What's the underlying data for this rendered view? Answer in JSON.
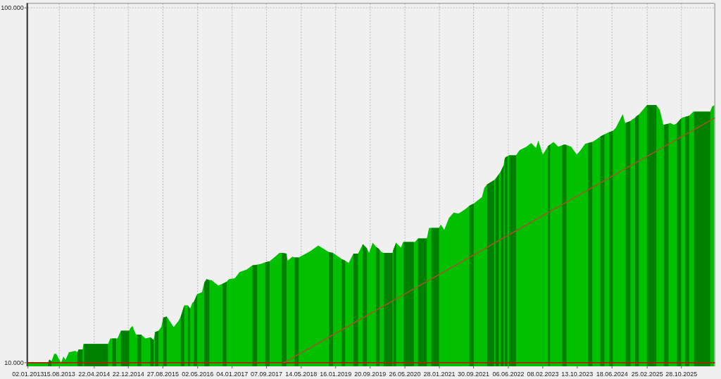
{
  "chart_data": {
    "type": "area",
    "x": [
      "2013-01-02",
      "2013-05-15",
      "2013-05-26",
      "2013-06-04",
      "2013-06-20",
      "2013-07-09",
      "2013-07-24",
      "2013-08-09",
      "2013-08-27",
      "2013-09-13",
      "2013-09-28",
      "2013-10-23",
      "2013-12-08",
      "2013-12-23",
      "2013-12-31",
      "2014-01-29",
      "2014-02-03",
      "2014-02-08",
      "2014-07-30",
      "2014-08-15",
      "2014-08-29",
      "2014-09-26",
      "2014-10-05",
      "2014-10-30",
      "2014-12-28",
      "2015-01-05",
      "2015-01-22",
      "2015-01-30",
      "2015-02-16",
      "2015-02-25",
      "2015-03-25",
      "2015-04-24",
      "2015-05-28",
      "2015-06-22",
      "2015-06-27",
      "2015-07-01",
      "2015-07-26",
      "2015-08-15",
      "2015-08-29",
      "2015-09-23",
      "2015-11-12",
      "2015-12-16",
      "2016-01-02",
      "2016-01-27",
      "2016-02-04",
      "2016-02-22",
      "2016-03-09",
      "2016-03-26",
      "2016-04-03",
      "2016-04-29",
      "2016-06-02",
      "2016-06-18",
      "2016-07-05",
      "2016-07-25",
      "2016-08-08",
      "2016-09-27",
      "2016-10-28",
      "2016-11-25",
      "2016-12-12",
      "2017-01-23",
      "2017-02-26",
      "2017-04-17",
      "2017-05-29",
      "2017-07-02",
      "2017-07-30",
      "2017-08-30",
      "2017-09-29",
      "2017-10-19",
      "2017-12-09",
      "2017-12-26",
      "2018-01-29",
      "2018-02-06",
      "2018-03-12",
      "2018-03-28",
      "2018-04-26",
      "2018-07-16",
      "2018-09-13",
      "2018-10-08",
      "2018-11-19",
      "2018-11-28",
      "2018-12-28",
      "2019-02-20",
      "2019-02-28",
      "2019-03-25",
      "2019-04-19",
      "2019-05-23",
      "2019-06-25",
      "2019-07-04",
      "2019-07-29",
      "2019-08-28",
      "2019-09-12",
      "2019-10-08",
      "2019-11-02",
      "2019-11-17",
      "2019-11-27",
      "2019-12-10",
      "2019-12-26",
      "2020-02-27",
      "2020-03-01",
      "2020-03-04",
      "2020-03-24",
      "2020-04-27",
      "2020-05-14",
      "2020-05-17",
      "2020-07-29",
      "2020-08-06",
      "2020-08-28",
      "2020-10-30",
      "2020-11-15",
      "2020-12-02",
      "2021-01-26",
      "2021-02-07",
      "2021-03-04",
      "2021-04-07",
      "2021-05-11",
      "2021-06-14",
      "2021-08-03",
      "2021-08-31",
      "2021-10-01",
      "2021-11-29",
      "2021-12-16",
      "2022-01-05",
      "2022-02-24",
      "2022-03-01",
      "2022-03-06",
      "2022-03-10",
      "2022-03-30",
      "2022-04-06",
      "2022-04-13",
      "2022-05-03",
      "2022-05-07",
      "2022-05-11",
      "2022-05-16",
      "2022-05-30",
      "2022-06-05",
      "2022-06-12",
      "2022-07-31",
      "2022-08-25",
      "2022-10-14",
      "2022-11-17",
      "2022-12-21",
      "2023-01-07",
      "2023-02-08",
      "2023-03-15",
      "2023-03-18",
      "2023-04-01",
      "2023-04-26",
      "2023-05-30",
      "2023-06-27",
      "2023-07-11",
      "2023-07-28",
      "2023-08-30",
      "2023-10-10",
      "2023-11-05",
      "2023-12-09",
      "2023-12-30",
      "2024-01-29",
      "2024-02-28",
      "2024-03-27",
      "2024-04-05",
      "2024-04-25",
      "2024-05-25",
      "2024-05-29",
      "2024-06-24",
      "2024-07-15",
      "2024-09-03",
      "2024-09-20",
      "2024-09-24",
      "2024-10-28",
      "2024-11-10",
      "2024-11-30",
      "2024-12-13",
      "2024-12-27",
      "2025-01-29",
      "2025-02-23",
      "2025-05-02",
      "2025-05-27",
      "2025-06-21",
      "2025-06-24",
      "2025-07-28",
      "2025-08-10",
      "2025-09-04",
      "2025-09-26",
      "2025-10-26",
      "2025-11-07",
      "2025-11-24",
      "2025-12-19",
      "2025-12-23",
      "2026-01-22",
      "2026-01-27",
      "2026-05-19",
      "2026-05-23",
      "2026-06-05",
      "2026-06-22"
    ],
    "series": [
      {
        "color": "#00c000",
        "values": [
          10000,
          10000,
          10000,
          10200,
          10100,
          10600,
          10600,
          10300,
          10000,
          10400,
          10200,
          10700,
          10800,
          10700,
          10900,
          10900,
          11300,
          11300,
          11300,
          11700,
          11700,
          11700,
          11700,
          12300,
          12300,
          12500,
          12700,
          12400,
          12000,
          12000,
          12000,
          11700,
          11800,
          11600,
          11900,
          12200,
          12300,
          12600,
          13400,
          13500,
          12600,
          13100,
          13500,
          14500,
          14500,
          14500,
          14200,
          14800,
          14800,
          15600,
          15800,
          16800,
          17200,
          17100,
          17100,
          16500,
          16700,
          16900,
          17200,
          17300,
          18000,
          18300,
          18800,
          18900,
          19000,
          19200,
          19300,
          19600,
          20400,
          20400,
          20300,
          19400,
          19900,
          19800,
          19800,
          20600,
          21400,
          21100,
          20600,
          20500,
          20400,
          19700,
          19600,
          19400,
          19100,
          20300,
          20300,
          20600,
          21600,
          21000,
          20400,
          21800,
          21200,
          21000,
          20800,
          20500,
          20400,
          20400,
          20600,
          20800,
          21800,
          21100,
          21900,
          21900,
          21900,
          21900,
          22400,
          22400,
          24000,
          24000,
          24000,
          24500,
          23700,
          25600,
          26500,
          26300,
          27100,
          27700,
          28100,
          29300,
          31100,
          31800,
          32700,
          32800,
          33000,
          33100,
          34000,
          34300,
          34600,
          36000,
          36800,
          37500,
          37900,
          38200,
          38300,
          38400,
          38400,
          39700,
          40600,
          41600,
          40300,
          42300,
          38600,
          40600,
          40800,
          41200,
          41900,
          40600,
          41000,
          41200,
          41100,
          40600,
          38600,
          39700,
          41400,
          41600,
          41900,
          42600,
          43400,
          43600,
          44000,
          44600,
          44600,
          45000,
          45900,
          50200,
          47400,
          47400,
          48000,
          48500,
          49000,
          49600,
          50000,
          51800,
          53200,
          53200,
          51500,
          46800,
          46800,
          47200,
          47400,
          46800,
          47300,
          48800,
          49100,
          49300,
          49600,
          49700,
          51000,
          51000,
          51000,
          51000,
          52700,
          53200
        ]
      },
      {
        "color": "#008000",
        "values": [
          null,
          null,
          10000,
          10200,
          10100,
          null,
          null,
          null,
          null,
          null,
          null,
          null,
          null,
          10700,
          10900,
          10900,
          null,
          11300,
          11300,
          null,
          11700,
          11700,
          null,
          12300,
          12300,
          null,
          null,
          null,
          null,
          12000,
          12000,
          null,
          11800,
          11600,
          null,
          12200,
          12300,
          null,
          13400,
          13500,
          null,
          null,
          13500,
          14500,
          null,
          14500,
          14200,
          null,
          14800,
          15600,
          null,
          16800,
          17200,
          17100,
          null,
          null,
          16700,
          16900,
          null,
          null,
          null,
          null,
          18800,
          18900,
          null,
          19200,
          19300,
          null,
          null,
          20400,
          20300,
          null,
          null,
          19800,
          19800,
          null,
          null,
          null,
          null,
          20500,
          20400,
          null,
          19600,
          19400,
          null,
          20300,
          20300,
          null,
          21600,
          21000,
          null,
          null,
          21200,
          21000,
          20800,
          null,
          20400,
          20400,
          null,
          20800,
          21800,
          null,
          null,
          21900,
          21900,
          null,
          22400,
          22400,
          null,
          24000,
          24000,
          null,
          null,
          null,
          null,
          null,
          null,
          27700,
          28100,
          null,
          null,
          31800,
          32700,
          null,
          33000,
          33100,
          34000,
          null,
          34600,
          36000,
          null,
          37500,
          37900,
          38200,
          null,
          38400,
          38400,
          null,
          null,
          null,
          null,
          null,
          null,
          null,
          40800,
          41200,
          null,
          null,
          41000,
          41200,
          41100,
          null,
          null,
          null,
          null,
          41600,
          41900,
          null,
          43400,
          43600,
          44000,
          null,
          44600,
          45000,
          null,
          null,
          null,
          47400,
          48000,
          null,
          49000,
          49600,
          50000,
          null,
          53200,
          53200,
          null,
          null,
          46800,
          47200,
          null,
          null,
          47300,
          48800,
          null,
          49300,
          49600,
          49700,
          null,
          51000,
          51000,
          51000,
          null,
          null
        ]
      },
      {
        "type": "line",
        "color": "#b02000",
        "x": [
          "2013-01-02",
          "2026-06-22"
        ],
        "values": [
          10000,
          10000
        ]
      },
      {
        "type": "line",
        "color": "#9a5a2a",
        "x": [
          "2018-01-10",
          "2026-06-22"
        ],
        "values": [
          10000,
          48900
        ]
      }
    ],
    "xlim": [
      "2013-01-02",
      "2026-06-22"
    ],
    "xticks": [
      {
        "value": "2013-01-02",
        "label": "02.01.2013"
      },
      {
        "value": "2013-08-15",
        "label": "15.08.2013"
      },
      {
        "value": "2014-04-22",
        "label": "22.04.2014"
      },
      {
        "value": "2014-12-22",
        "label": "22.12.2014"
      },
      {
        "value": "2015-08-27",
        "label": "27.08.2015"
      },
      {
        "value": "2016-05-02",
        "label": "02.05.2016"
      },
      {
        "value": "2017-01-04",
        "label": "04.01.2017"
      },
      {
        "value": "2017-09-07",
        "label": "07.09.2017"
      },
      {
        "value": "2018-05-14",
        "label": "14.05.2018"
      },
      {
        "value": "2019-01-16",
        "label": "16.01.2019"
      },
      {
        "value": "2019-09-20",
        "label": "20.09.2019"
      },
      {
        "value": "2020-05-26",
        "label": "26.05.2020"
      },
      {
        "value": "2021-01-28",
        "label": "28.01.2021"
      },
      {
        "value": "2021-09-30",
        "label": "30.09.2021"
      },
      {
        "value": "2022-06-06",
        "label": "06.06.2022"
      },
      {
        "value": "2023-02-08",
        "label": "08.02.2023"
      },
      {
        "value": "2023-10-13",
        "label": "13.10.2023"
      },
      {
        "value": "2024-06-18",
        "label": "18.06.2024"
      },
      {
        "value": "2025-02-25",
        "label": "25.02.2025"
      },
      {
        "value": "2025-10-28",
        "label": "28.10.2025"
      }
    ],
    "ylim": [
      9770,
      103000
    ],
    "yticks": [
      {
        "value": 10000,
        "label": "10.000"
      },
      {
        "value": 100000,
        "label": "100.000"
      }
    ],
    "log": true,
    "grid": true
  }
}
